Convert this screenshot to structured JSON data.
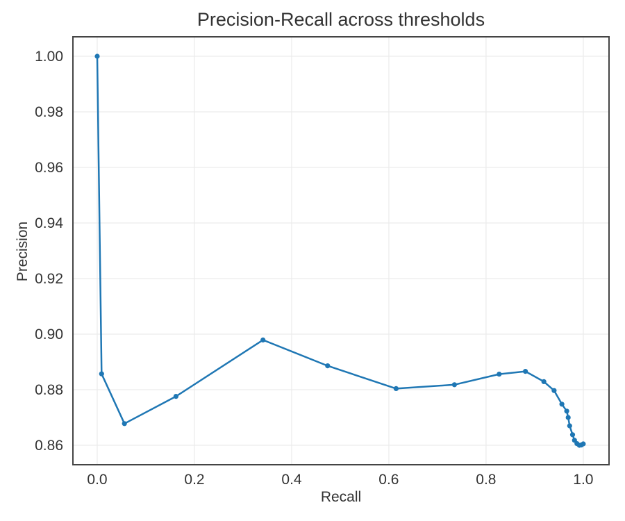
{
  "figure": {
    "background_color": "#ffffff",
    "text_color": "#333333",
    "grid_color": "#ececec",
    "spine_color": "#444444"
  },
  "chart_data": {
    "type": "line",
    "title": "Precision-Recall across thresholds",
    "xlabel": "Recall",
    "ylabel": "Precision",
    "xlim": [
      -0.05,
      1.053
    ],
    "ylim": [
      0.853,
      1.007
    ],
    "grid": true,
    "legend": "none",
    "x_ticks": [
      0.0,
      0.2,
      0.4,
      0.6,
      0.8,
      1.0
    ],
    "x_tick_labels": [
      "0.0",
      "0.2",
      "0.4",
      "0.6",
      "0.8",
      "1.0"
    ],
    "y_ticks": [
      0.86,
      0.88,
      0.9,
      0.92,
      0.94,
      0.96,
      0.98,
      1.0
    ],
    "y_tick_labels": [
      "0.86",
      "0.88",
      "0.90",
      "0.92",
      "0.94",
      "0.96",
      "0.98",
      "1.00"
    ],
    "series": [
      {
        "name": "precision-recall-curve",
        "color": "#1f77b4",
        "marker": "circle",
        "marker_radius": 3.6,
        "line_width": 2.5,
        "points": [
          [
            0.0,
            1.0
          ],
          [
            0.009,
            0.8857
          ],
          [
            0.056,
            0.8678
          ],
          [
            0.162,
            0.8776
          ],
          [
            0.341,
            0.8979
          ],
          [
            0.474,
            0.8886
          ],
          [
            0.615,
            0.8804
          ],
          [
            0.735,
            0.8818
          ],
          [
            0.827,
            0.8856
          ],
          [
            0.881,
            0.8866
          ],
          [
            0.919,
            0.8829
          ],
          [
            0.94,
            0.8797
          ],
          [
            0.956,
            0.8748
          ],
          [
            0.966,
            0.8723
          ],
          [
            0.969,
            0.87
          ],
          [
            0.972,
            0.867
          ],
          [
            0.978,
            0.8638
          ],
          [
            0.982,
            0.8618
          ],
          [
            0.987,
            0.8606
          ],
          [
            0.992,
            0.86
          ],
          [
            0.996,
            0.8601
          ],
          [
            1.0,
            0.8605
          ]
        ]
      }
    ]
  }
}
